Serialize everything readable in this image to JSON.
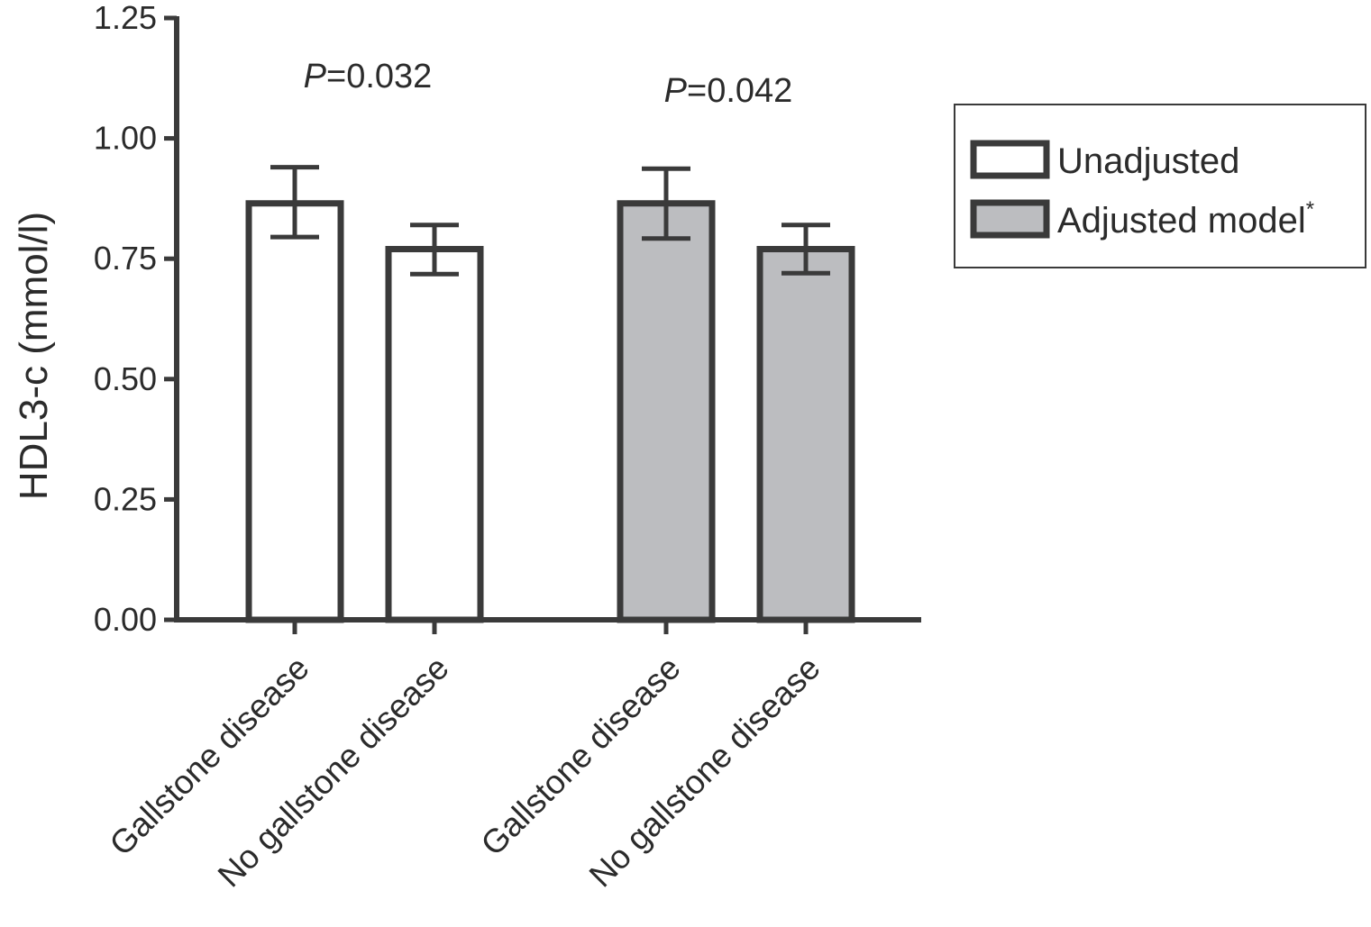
{
  "chart_data": {
    "type": "bar",
    "title": "",
    "xlabel": "",
    "ylabel": "HDL3-c (mmol/l)",
    "ylim": [
      0,
      1.25
    ],
    "yticks": [
      "0.00",
      "0.25",
      "0.50",
      "0.75",
      "1.00",
      "1.25"
    ],
    "grid": false,
    "legend_position": "right",
    "categories": [
      "Gallstone disease",
      "No gallstone disease",
      "Gallstone disease",
      "No gallstone disease"
    ],
    "series": [
      {
        "name": "Unadjusted",
        "color": "#ffffff",
        "bars": [
          {
            "category": "Gallstone disease",
            "value": 0.865,
            "err_low": 0.795,
            "err_high": 0.94
          },
          {
            "category": "No gallstone disease",
            "value": 0.77,
            "err_low": 0.718,
            "err_high": 0.82
          }
        ]
      },
      {
        "name": "Adjusted model",
        "name_superscript": "*",
        "color": "#bcbdc0",
        "bars": [
          {
            "category": "Gallstone disease",
            "value": 0.865,
            "err_low": 0.792,
            "err_high": 0.937
          },
          {
            "category": "No gallstone disease",
            "value": 0.77,
            "err_low": 0.72,
            "err_high": 0.82
          }
        ]
      }
    ],
    "annotations": [
      {
        "prefix": "P",
        "text": "=0.032",
        "group": "Unadjusted"
      },
      {
        "prefix": "P",
        "text": "=0.042",
        "group": "Adjusted model"
      }
    ],
    "colors": {
      "axis": "#3a3a3a",
      "bar_outline": "#3a3a3a",
      "unadjusted_fill": "#ffffff",
      "adjusted_fill": "#bcbdc0"
    }
  }
}
